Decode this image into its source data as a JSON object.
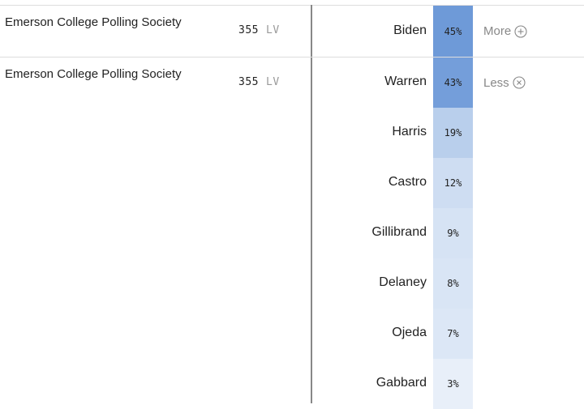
{
  "rows": [
    {
      "pollster": "Emerson College Polling Society",
      "sample": "355",
      "population": "LV",
      "toggle": "More",
      "results": [
        {
          "candidate": "Biden",
          "percent": "45%"
        }
      ]
    },
    {
      "pollster": "Emerson College Polling Society",
      "sample": "355",
      "population": "LV",
      "toggle": "Less",
      "results": [
        {
          "candidate": "Warren",
          "percent": "43%"
        },
        {
          "candidate": "Harris",
          "percent": "19%"
        },
        {
          "candidate": "Castro",
          "percent": "12%"
        },
        {
          "candidate": "Gillibrand",
          "percent": "9%"
        },
        {
          "candidate": "Delaney",
          "percent": "8%"
        },
        {
          "candidate": "Ojeda",
          "percent": "7%"
        },
        {
          "candidate": "Gabbard",
          "percent": "3%"
        }
      ]
    }
  ]
}
